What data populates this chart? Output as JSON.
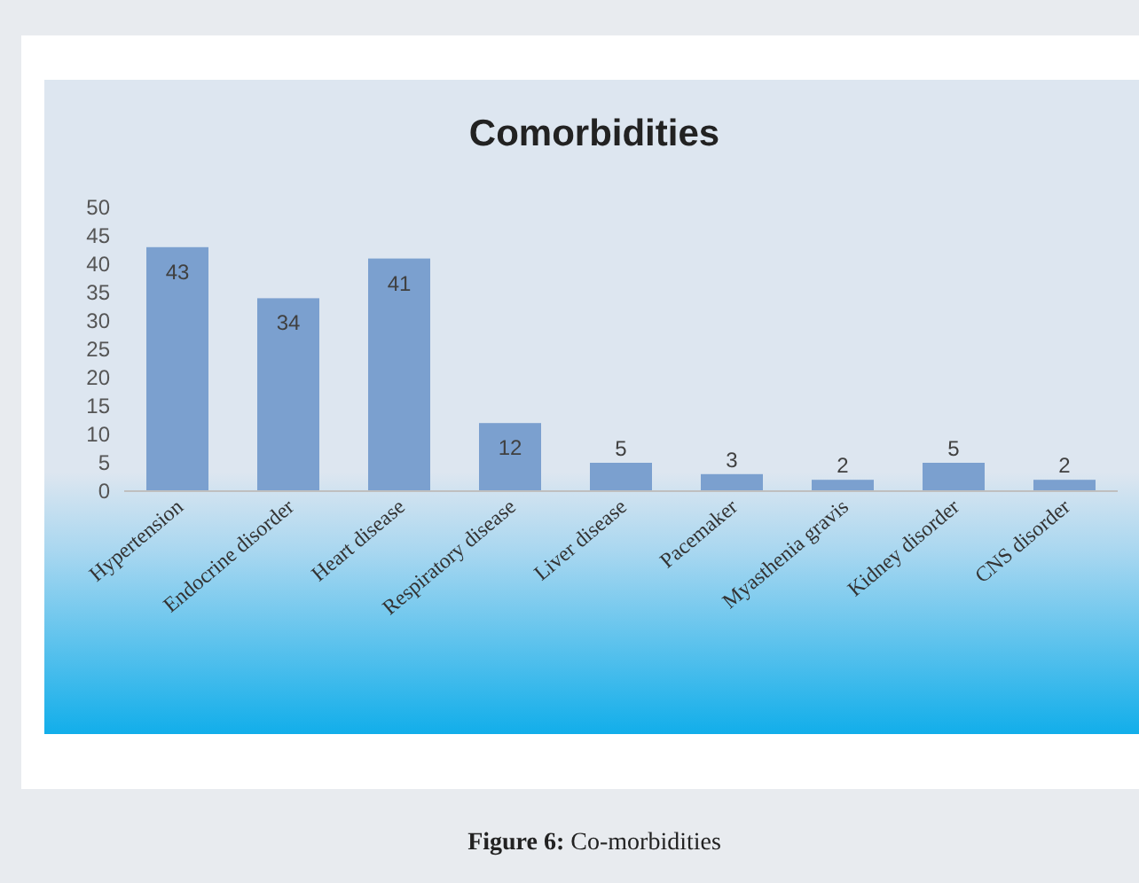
{
  "chart_data": {
    "type": "bar",
    "title": "Comorbidities",
    "categories": [
      "Hypertension",
      "Endocrine disorder",
      "Heart disease",
      "Respiratory disease",
      "Liver disease",
      "Pacemaker",
      "Myasthenia gravis",
      "Kidney disorder",
      "CNS disorder"
    ],
    "values": [
      43,
      34,
      41,
      12,
      5,
      3,
      2,
      5,
      2
    ],
    "color": "#7ba0cf",
    "ylim": [
      0,
      50
    ],
    "yticks": [
      0,
      5,
      10,
      15,
      20,
      25,
      30,
      35,
      40,
      45,
      50
    ],
    "grid": false,
    "data_labels": true,
    "annotations": [
      "Figure 6: Co-morbidities"
    ]
  }
}
